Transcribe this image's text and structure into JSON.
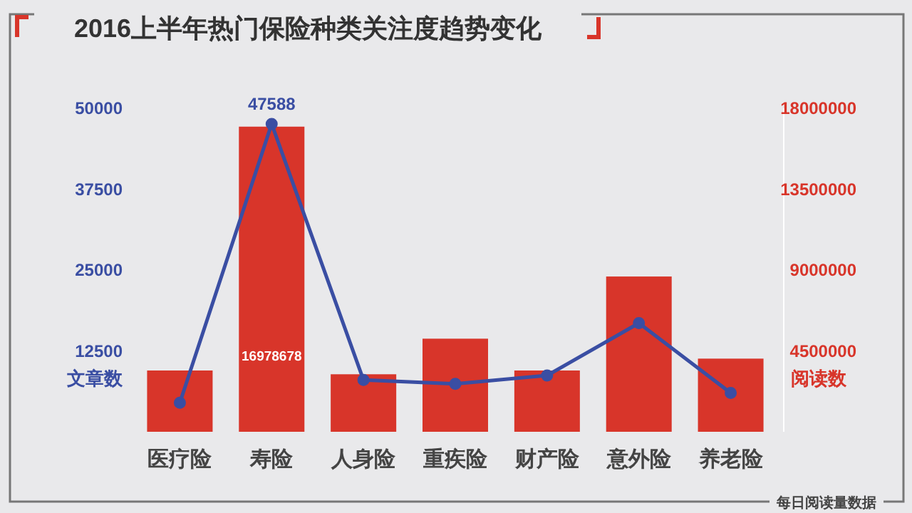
{
  "chart_data": {
    "type": "bar",
    "title": "2016上半年热门保险种类关注度趋势变化",
    "ylabel": "文章数",
    "y2label": "阅读数",
    "categories": [
      "医疗险",
      "寿险",
      "人身险",
      "重疾险",
      "财产险",
      "意外险",
      "养老险"
    ],
    "series": [
      {
        "type": "bar",
        "axis": "y2",
        "color": "#d8352a",
        "values": [
          3410000,
          16978678,
          3200000,
          5180000,
          3410000,
          8640000,
          4070000
        ],
        "value_labels": [
          null,
          "16978678",
          null,
          null,
          null,
          null,
          null
        ]
      },
      {
        "type": "line",
        "axis": "y",
        "color": "#3a4ea3",
        "marker": "circle",
        "line_style": "solid",
        "values": [
          4500,
          47588,
          8000,
          7400,
          8700,
          16800,
          6000
        ],
        "value_labels": [
          null,
          "47588",
          null,
          null,
          null,
          null,
          null
        ]
      }
    ],
    "ylim": [
      0,
      50000
    ],
    "yticks": [
      12500,
      25000,
      37500,
      50000
    ],
    "y2lim": [
      0,
      18000000
    ],
    "y2ticks": [
      4500000,
      9000000,
      13500000,
      18000000
    ],
    "grid": false,
    "annotations": [
      "每日阅读量数据"
    ]
  }
}
